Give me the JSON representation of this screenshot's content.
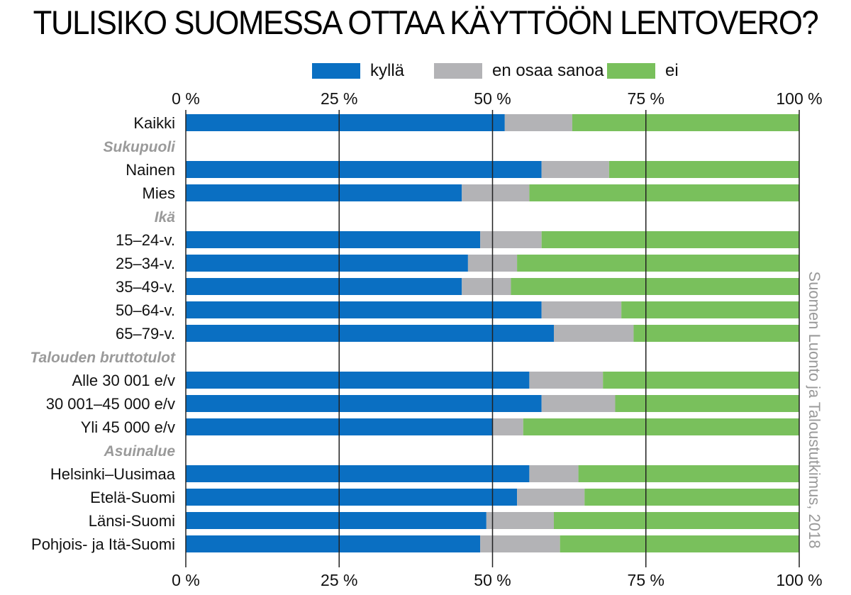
{
  "title": "TULISIKO SUOMESSA OTTAA KÄYTTÖÖN LENTOVERO?",
  "source": "Suomen Luonto ja Taloustutkimus, 2018",
  "colors": {
    "kylla": "#0a6fc2",
    "eos": "#b3b3b6",
    "ei": "#79c05c",
    "section": "#9a9a9a",
    "grid": "#222222"
  },
  "legend": [
    {
      "label": "kyllä",
      "color": "#0a6fc2"
    },
    {
      "label": "en osaa sanoa",
      "color": "#b3b3b6"
    },
    {
      "label": "ei",
      "color": "#79c05c"
    }
  ],
  "chart_data": {
    "type": "bar",
    "orientation": "horizontal",
    "stacked": true,
    "title": "TULISIKO SUOMESSA OTTAA KÄYTTÖÖN LENTOVERO?",
    "xlim": [
      0,
      100
    ],
    "xticks": [
      "0 %",
      "25 %",
      "50 %",
      "75 %",
      "100 %"
    ],
    "grid": true,
    "legend_position": "top",
    "series_names": [
      "kyllä",
      "en osaa sanoa",
      "ei"
    ],
    "rows": [
      {
        "label": "Kaikki",
        "values": [
          52,
          11,
          37
        ]
      },
      {
        "section": "Sukupuoli"
      },
      {
        "label": "Nainen",
        "values": [
          58,
          11,
          31
        ]
      },
      {
        "label": "Mies",
        "values": [
          45,
          11,
          44
        ]
      },
      {
        "section": "Ikä"
      },
      {
        "label": "15–24-v.",
        "values": [
          48,
          10,
          42
        ]
      },
      {
        "label": "25–34-v.",
        "values": [
          46,
          8,
          46
        ]
      },
      {
        "label": "35–49-v.",
        "values": [
          45,
          8,
          47
        ]
      },
      {
        "label": "50–64-v.",
        "values": [
          58,
          13,
          29
        ]
      },
      {
        "label": "65–79-v.",
        "values": [
          60,
          13,
          27
        ]
      },
      {
        "section": "Talouden bruttotulot"
      },
      {
        "label": "Alle 30 001 e/v",
        "values": [
          56,
          12,
          32
        ]
      },
      {
        "label": "30 001–45 000 e/v",
        "values": [
          58,
          12,
          30
        ]
      },
      {
        "label": "Yli 45 000 e/v",
        "values": [
          50,
          5,
          45
        ]
      },
      {
        "section": "Asuinalue"
      },
      {
        "label": "Helsinki–Uusimaa",
        "values": [
          56,
          8,
          36
        ]
      },
      {
        "label": "Etelä-Suomi",
        "values": [
          54,
          11,
          35
        ]
      },
      {
        "label": "Länsi-Suomi",
        "values": [
          49,
          11,
          40
        ]
      },
      {
        "label": "Pohjois- ja Itä-Suomi",
        "values": [
          48,
          13,
          39
        ]
      }
    ]
  }
}
